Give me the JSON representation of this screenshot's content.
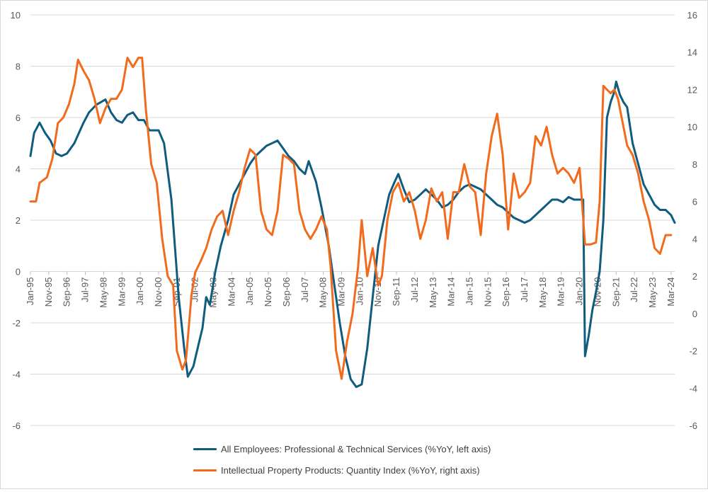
{
  "chart_data": {
    "type": "line",
    "colors": {
      "employees": "#0f5c7e",
      "ipp": "#f26b1d",
      "grid": "#d9d9d9"
    },
    "left_axis": {
      "min": -6,
      "max": 10,
      "ticks": [
        "10",
        "8",
        "6",
        "4",
        "2",
        "0",
        "-2",
        "-4",
        "-6"
      ]
    },
    "right_axis": {
      "min": -6,
      "max": 16,
      "ticks": [
        "16",
        "14",
        "12",
        "10",
        "8",
        "6",
        "4",
        "2",
        "0",
        "-2",
        "-4",
        "-6"
      ]
    },
    "x_range": [
      "Jan-95",
      "May-24"
    ],
    "x_tick_labels": [
      "Jan-95",
      "Nov-95",
      "Sep-96",
      "Jul-97",
      "May-98",
      "Mar-99",
      "Jan-00",
      "Nov-00",
      "Sep-01",
      "Jul-02",
      "May-03",
      "Mar-04",
      "Jan-05",
      "Nov-05",
      "Sep-06",
      "Jul-07",
      "May-08",
      "Mar-09",
      "Jan-10",
      "Nov-10",
      "Sep-11",
      "Jul-12",
      "May-13",
      "Mar-14",
      "Jan-15",
      "Nov-15",
      "Sep-16",
      "Jul-17",
      "May-18",
      "Mar-19",
      "Jan-20",
      "Nov-20",
      "Sep-21",
      "Jul-22",
      "May-23",
      "Mar-24"
    ],
    "grid": "horizontal",
    "legend_position": "bottom",
    "series": [
      {
        "name": "All Employees: Professional & Technical Services (%YoY, left axis)",
        "axis": "left",
        "points": [
          [
            "Jan-95",
            4.5
          ],
          [
            "Mar-95",
            5.4
          ],
          [
            "Jun-95",
            5.8
          ],
          [
            "Sep-95",
            5.4
          ],
          [
            "Dec-95",
            5.1
          ],
          [
            "Mar-96",
            4.6
          ],
          [
            "Jun-96",
            4.5
          ],
          [
            "Sep-96",
            4.6
          ],
          [
            "Jan-97",
            5.0
          ],
          [
            "Jun-97",
            5.8
          ],
          [
            "Sep-97",
            6.2
          ],
          [
            "Jan-98",
            6.5
          ],
          [
            "Jun-98",
            6.7
          ],
          [
            "Sep-98",
            6.2
          ],
          [
            "Dec-98",
            5.9
          ],
          [
            "Mar-99",
            5.8
          ],
          [
            "Jun-99",
            6.1
          ],
          [
            "Sep-99",
            6.2
          ],
          [
            "Dec-99",
            5.9
          ],
          [
            "Mar-00",
            5.9
          ],
          [
            "Jun-00",
            5.5
          ],
          [
            "Sep-00",
            5.5
          ],
          [
            "Nov-00",
            5.5
          ],
          [
            "Feb-01",
            5.0
          ],
          [
            "Jun-01",
            2.8
          ],
          [
            "Oct-01",
            -1.0
          ],
          [
            "Jan-02",
            -3.0
          ],
          [
            "Mar-02",
            -4.1
          ],
          [
            "Jun-02",
            -3.7
          ],
          [
            "Sep-02",
            -2.8
          ],
          [
            "Nov-02",
            -2.2
          ],
          [
            "Jan-03",
            -1.0
          ],
          [
            "Mar-03",
            -1.3
          ],
          [
            "Jun-03",
            0.0
          ],
          [
            "Sep-03",
            1.0
          ],
          [
            "Jan-04",
            2.0
          ],
          [
            "Apr-04",
            3.0
          ],
          [
            "Jul-04",
            3.4
          ],
          [
            "Oct-04",
            3.8
          ],
          [
            "Jan-05",
            4.2
          ],
          [
            "Apr-05",
            4.5
          ],
          [
            "Jul-05",
            4.7
          ],
          [
            "Oct-05",
            4.9
          ],
          [
            "Jan-06",
            5.0
          ],
          [
            "Apr-06",
            5.1
          ],
          [
            "Jul-06",
            4.8
          ],
          [
            "Oct-06",
            4.5
          ],
          [
            "Jan-07",
            4.3
          ],
          [
            "Apr-07",
            4.0
          ],
          [
            "Jul-07",
            3.8
          ],
          [
            "Sep-07",
            4.3
          ],
          [
            "Jan-08",
            3.5
          ],
          [
            "Apr-08",
            2.5
          ],
          [
            "Aug-08",
            1.0
          ],
          [
            "Nov-08",
            -0.5
          ],
          [
            "Feb-09",
            -2.0
          ],
          [
            "May-09",
            -3.3
          ],
          [
            "Aug-09",
            -4.2
          ],
          [
            "Nov-09",
            -4.5
          ],
          [
            "Feb-10",
            -4.4
          ],
          [
            "May-10",
            -3.0
          ],
          [
            "Aug-10",
            -1.0
          ],
          [
            "Nov-10",
            1.0
          ],
          [
            "Feb-11",
            2.0
          ],
          [
            "May-11",
            3.0
          ],
          [
            "Aug-11",
            3.5
          ],
          [
            "Oct-11",
            3.8
          ],
          [
            "Jan-12",
            3.2
          ],
          [
            "Apr-12",
            2.7
          ],
          [
            "Jul-12",
            2.8
          ],
          [
            "Oct-12",
            3.0
          ],
          [
            "Jan-13",
            3.2
          ],
          [
            "Apr-13",
            3.0
          ],
          [
            "Jul-13",
            2.8
          ],
          [
            "Oct-13",
            2.5
          ],
          [
            "Jan-14",
            2.6
          ],
          [
            "Apr-14",
            2.8
          ],
          [
            "Jul-14",
            3.1
          ],
          [
            "Oct-14",
            3.3
          ],
          [
            "Jan-15",
            3.4
          ],
          [
            "Apr-15",
            3.3
          ],
          [
            "Jul-15",
            3.2
          ],
          [
            "Oct-15",
            3.0
          ],
          [
            "Jan-16",
            2.8
          ],
          [
            "Apr-16",
            2.6
          ],
          [
            "Jul-16",
            2.5
          ],
          [
            "Oct-16",
            2.3
          ],
          [
            "Jan-17",
            2.1
          ],
          [
            "Apr-17",
            2.0
          ],
          [
            "Jul-17",
            1.9
          ],
          [
            "Oct-17",
            2.0
          ],
          [
            "Jan-18",
            2.2
          ],
          [
            "Apr-18",
            2.4
          ],
          [
            "Jul-18",
            2.6
          ],
          [
            "Oct-18",
            2.8
          ],
          [
            "Jan-19",
            2.8
          ],
          [
            "Apr-19",
            2.7
          ],
          [
            "Jul-19",
            2.9
          ],
          [
            "Oct-19",
            2.8
          ],
          [
            "Jan-20",
            2.8
          ],
          [
            "Mar-20",
            2.8
          ],
          [
            "Apr-20",
            -3.3
          ],
          [
            "Jun-20",
            -2.5
          ],
          [
            "Aug-20",
            -1.5
          ],
          [
            "Oct-20",
            -0.8
          ],
          [
            "Dec-20",
            0.0
          ],
          [
            "Feb-21",
            2.0
          ],
          [
            "Apr-21",
            6.0
          ],
          [
            "Jun-21",
            6.6
          ],
          [
            "Aug-21",
            7.0
          ],
          [
            "Sep-21",
            7.4
          ],
          [
            "Nov-21",
            6.9
          ],
          [
            "Jan-22",
            6.6
          ],
          [
            "Mar-22",
            6.4
          ],
          [
            "Jun-22",
            5.0
          ],
          [
            "Sep-22",
            4.2
          ],
          [
            "Dec-22",
            3.4
          ],
          [
            "Mar-23",
            3.0
          ],
          [
            "Jun-23",
            2.6
          ],
          [
            "Sep-23",
            2.4
          ],
          [
            "Dec-23",
            2.4
          ],
          [
            "Mar-24",
            2.2
          ],
          [
            "May-24",
            1.9
          ]
        ]
      },
      {
        "name": "Intellectual Property Products: Quantity Index (%YoY, right axis)",
        "axis": "right",
        "points": [
          [
            "Jan-95",
            6.0
          ],
          [
            "Apr-95",
            6.0
          ],
          [
            "Jun-95",
            7.0
          ],
          [
            "Oct-95",
            7.3
          ],
          [
            "Jan-96",
            8.3
          ],
          [
            "Apr-96",
            10.2
          ],
          [
            "Jul-96",
            10.5
          ],
          [
            "Oct-96",
            11.2
          ],
          [
            "Jan-97",
            12.3
          ],
          [
            "Mar-97",
            13.6
          ],
          [
            "Jun-97",
            13.0
          ],
          [
            "Sep-97",
            12.5
          ],
          [
            "Dec-97",
            11.5
          ],
          [
            "Mar-98",
            10.2
          ],
          [
            "Jun-98",
            11.0
          ],
          [
            "Sep-98",
            11.5
          ],
          [
            "Dec-98",
            11.5
          ],
          [
            "Mar-99",
            12.0
          ],
          [
            "Jun-99",
            13.7
          ],
          [
            "Sep-99",
            13.2
          ],
          [
            "Dec-99",
            13.7
          ],
          [
            "Feb-00",
            13.7
          ],
          [
            "Apr-00",
            11.0
          ],
          [
            "Jul-00",
            8.0
          ],
          [
            "Oct-00",
            7.0
          ],
          [
            "Jan-01",
            4.0
          ],
          [
            "Apr-01",
            2.0
          ],
          [
            "Jul-01",
            1.5
          ],
          [
            "Sep-01",
            -2.0
          ],
          [
            "Dec-01",
            -3.0
          ],
          [
            "Feb-02",
            -2.5
          ],
          [
            "May-02",
            1.0
          ],
          [
            "Jul-02",
            2.2
          ],
          [
            "Oct-02",
            2.8
          ],
          [
            "Jan-03",
            3.5
          ],
          [
            "Apr-03",
            4.5
          ],
          [
            "Jul-03",
            5.2
          ],
          [
            "Oct-03",
            5.5
          ],
          [
            "Jan-04",
            4.2
          ],
          [
            "Apr-04",
            5.5
          ],
          [
            "Jul-04",
            6.5
          ],
          [
            "Oct-04",
            7.8
          ],
          [
            "Jan-05",
            8.8
          ],
          [
            "Apr-05",
            8.5
          ],
          [
            "Jul-05",
            5.5
          ],
          [
            "Oct-05",
            4.5
          ],
          [
            "Jan-06",
            4.2
          ],
          [
            "Apr-06",
            5.5
          ],
          [
            "Jul-06",
            8.5
          ],
          [
            "Oct-06",
            8.3
          ],
          [
            "Jan-07",
            8.0
          ],
          [
            "Apr-07",
            5.5
          ],
          [
            "Jul-07",
            4.5
          ],
          [
            "Oct-07",
            4.0
          ],
          [
            "Jan-08",
            4.5
          ],
          [
            "Apr-08",
            5.2
          ],
          [
            "Jul-08",
            4.5
          ],
          [
            "Sep-08",
            2.5
          ],
          [
            "Dec-08",
            -2.0
          ],
          [
            "Mar-09",
            -3.5
          ],
          [
            "Jun-09",
            -1.5
          ],
          [
            "Sep-09",
            0.0
          ],
          [
            "Dec-09",
            2.5
          ],
          [
            "Feb-10",
            5.0
          ],
          [
            "May-10",
            2.0
          ],
          [
            "Aug-10",
            3.5
          ],
          [
            "Nov-10",
            1.5
          ],
          [
            "Jan-11",
            2.0
          ],
          [
            "Apr-11",
            5.0
          ],
          [
            "Jul-11",
            6.5
          ],
          [
            "Oct-11",
            7.0
          ],
          [
            "Jan-12",
            6.0
          ],
          [
            "Apr-12",
            6.5
          ],
          [
            "Jul-12",
            5.5
          ],
          [
            "Oct-12",
            4.0
          ],
          [
            "Jan-13",
            5.0
          ],
          [
            "Apr-13",
            6.7
          ],
          [
            "Jul-13",
            6.0
          ],
          [
            "Oct-13",
            6.5
          ],
          [
            "Jan-14",
            4.0
          ],
          [
            "Apr-14",
            6.5
          ],
          [
            "Jul-14",
            6.5
          ],
          [
            "Oct-14",
            8.0
          ],
          [
            "Jan-15",
            6.8
          ],
          [
            "Apr-15",
            6.5
          ],
          [
            "Jul-15",
            4.2
          ],
          [
            "Oct-15",
            7.5
          ],
          [
            "Jan-16",
            9.5
          ],
          [
            "Apr-16",
            10.7
          ],
          [
            "Jul-16",
            8.5
          ],
          [
            "Oct-16",
            4.5
          ],
          [
            "Jan-17",
            7.5
          ],
          [
            "Apr-17",
            6.2
          ],
          [
            "Jul-17",
            6.5
          ],
          [
            "Oct-17",
            7.0
          ],
          [
            "Jan-18",
            9.5
          ],
          [
            "Apr-18",
            9.0
          ],
          [
            "Jul-18",
            10.0
          ],
          [
            "Oct-18",
            8.5
          ],
          [
            "Jan-19",
            7.5
          ],
          [
            "Apr-19",
            7.8
          ],
          [
            "Jul-19",
            7.5
          ],
          [
            "Oct-19",
            7.0
          ],
          [
            "Jan-20",
            7.8
          ],
          [
            "Apr-20",
            3.7
          ],
          [
            "Jul-20",
            3.7
          ],
          [
            "Oct-20",
            3.8
          ],
          [
            "Dec-20",
            6.0
          ],
          [
            "Feb-21",
            12.2
          ],
          [
            "Apr-21",
            12.0
          ],
          [
            "Jun-21",
            11.8
          ],
          [
            "Aug-21",
            12.0
          ],
          [
            "Oct-21",
            11.5
          ],
          [
            "Dec-21",
            10.5
          ],
          [
            "Mar-22",
            9.0
          ],
          [
            "Jun-22",
            8.5
          ],
          [
            "Sep-22",
            7.5
          ],
          [
            "Dec-22",
            6.0
          ],
          [
            "Mar-23",
            5.0
          ],
          [
            "Jun-23",
            3.5
          ],
          [
            "Sep-23",
            3.2
          ],
          [
            "Dec-23",
            4.2
          ],
          [
            "Mar-24",
            4.2
          ]
        ]
      }
    ]
  }
}
